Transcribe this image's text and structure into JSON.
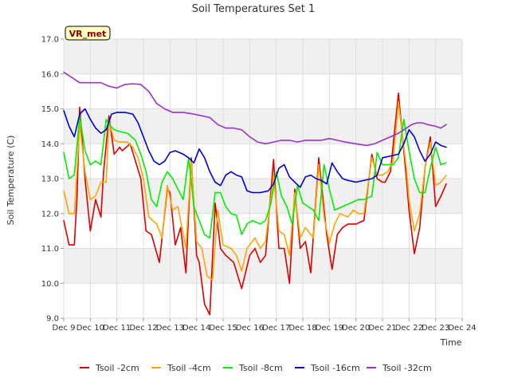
{
  "chart_data": {
    "type": "line",
    "title": "Soil Temperatures Set 1",
    "xlabel": "Time",
    "ylabel": "Soil Temperature (C)",
    "badge": "VR_met",
    "ylim": [
      9.0,
      17.0
    ],
    "yticks": [
      "9.0",
      "10.0",
      "11.0",
      "12.0",
      "13.0",
      "14.0",
      "15.0",
      "16.0",
      "17.0"
    ],
    "xlim": [
      9,
      24
    ],
    "xticks": [
      "Dec 9",
      "Dec 10",
      "Dec 11",
      "Dec 12",
      "Dec 13",
      "Dec 14",
      "Dec 15",
      "Dec 16",
      "Dec 17",
      "Dec 18",
      "Dec 19",
      "Dec 20",
      "Dec 21",
      "Dec 22",
      "Dec 23",
      "Dec 24"
    ],
    "grid": true,
    "legend_position": "bottom",
    "series": [
      {
        "name": "Tsoil -2cm",
        "color": "#dd0000",
        "x": [
          9.0,
          9.2,
          9.4,
          9.5,
          9.6,
          9.8,
          10.0,
          10.2,
          10.4,
          10.5,
          10.7,
          10.9,
          11.0,
          11.1,
          11.2,
          11.5,
          11.7,
          11.9,
          12.1,
          12.3,
          12.6,
          12.9,
          13.0,
          13.2,
          13.4,
          13.6,
          13.8,
          14.0,
          14.1,
          14.3,
          14.5,
          14.7,
          14.9,
          15.1,
          15.4,
          15.7,
          16.0,
          16.2,
          16.4,
          16.6,
          16.9,
          17.1,
          17.3,
          17.5,
          17.7,
          17.9,
          18.1,
          18.3,
          18.6,
          18.9,
          19.1,
          19.3,
          19.5,
          19.7,
          20.0,
          20.3,
          20.6,
          20.8,
          21.0,
          21.1,
          21.3,
          21.6,
          21.9,
          22.0,
          22.2,
          22.4,
          22.6,
          22.8,
          23.0,
          23.2,
          23.4
        ],
        "y": [
          11.8,
          11.1,
          11.1,
          12.5,
          15.05,
          13.0,
          11.5,
          12.4,
          11.9,
          13.2,
          14.8,
          13.7,
          13.8,
          13.9,
          13.8,
          14.0,
          13.5,
          13.0,
          11.5,
          11.4,
          10.6,
          12.7,
          12.6,
          11.1,
          11.6,
          10.3,
          13.6,
          10.8,
          10.6,
          9.4,
          9.1,
          12.3,
          11.0,
          10.8,
          10.6,
          9.85,
          10.8,
          11.0,
          10.6,
          10.8,
          13.55,
          11.0,
          11.0,
          10.0,
          12.7,
          11.0,
          11.2,
          10.3,
          13.6,
          11.4,
          10.4,
          11.4,
          11.6,
          11.7,
          11.7,
          11.8,
          13.7,
          13.0,
          12.9,
          12.9,
          13.2,
          15.45,
          13.0,
          12.1,
          10.85,
          11.6,
          13.3,
          14.2,
          12.2,
          12.5,
          12.85
        ]
      },
      {
        "name": "Tsoil -4cm",
        "color": "#ffa500",
        "x": [
          9.0,
          9.2,
          9.4,
          9.6,
          9.8,
          10.0,
          10.2,
          10.4,
          10.6,
          10.7,
          10.9,
          11.1,
          11.4,
          11.6,
          11.8,
          12.0,
          12.2,
          12.5,
          12.7,
          12.9,
          13.1,
          13.3,
          13.6,
          13.8,
          14.0,
          14.2,
          14.4,
          14.6,
          14.8,
          15.0,
          15.3,
          15.5,
          15.7,
          15.9,
          16.2,
          16.4,
          16.6,
          16.9,
          17.1,
          17.3,
          17.5,
          17.7,
          17.9,
          18.1,
          18.4,
          18.6,
          18.8,
          19.0,
          19.2,
          19.4,
          19.7,
          19.9,
          20.1,
          20.3,
          20.6,
          20.8,
          21.0,
          21.2,
          21.4,
          21.6,
          21.9,
          22.0,
          22.2,
          22.4,
          22.6,
          22.8,
          23.0,
          23.2,
          23.4
        ],
        "y": [
          12.65,
          12.0,
          12.0,
          14.55,
          13.2,
          12.4,
          12.5,
          12.9,
          12.9,
          14.65,
          14.1,
          14.05,
          14.05,
          13.9,
          13.6,
          13.0,
          11.9,
          11.7,
          11.3,
          12.8,
          12.1,
          12.2,
          11.0,
          13.5,
          11.2,
          11.0,
          10.2,
          10.1,
          12.1,
          11.1,
          11.0,
          10.8,
          10.35,
          11.0,
          11.3,
          11.0,
          11.2,
          13.1,
          11.5,
          11.4,
          10.8,
          12.6,
          11.3,
          11.6,
          11.3,
          13.4,
          11.9,
          11.15,
          11.7,
          12.0,
          11.9,
          12.1,
          12.0,
          12.0,
          13.6,
          13.1,
          13.1,
          13.2,
          13.5,
          15.2,
          13.3,
          12.4,
          11.5,
          12.0,
          13.3,
          14.05,
          12.8,
          12.9,
          13.1
        ]
      },
      {
        "name": "Tsoil -8cm",
        "color": "#00ee00",
        "x": [
          9.0,
          9.2,
          9.4,
          9.6,
          9.8,
          10.0,
          10.2,
          10.4,
          10.6,
          10.7,
          10.9,
          11.1,
          11.4,
          11.7,
          11.9,
          12.1,
          12.3,
          12.5,
          12.7,
          12.9,
          13.1,
          13.3,
          13.5,
          13.7,
          13.9,
          14.1,
          14.3,
          14.5,
          14.7,
          14.9,
          15.1,
          15.3,
          15.5,
          15.7,
          15.9,
          16.1,
          16.4,
          16.6,
          16.8,
          17.0,
          17.2,
          17.4,
          17.6,
          17.8,
          18.0,
          18.2,
          18.4,
          18.6,
          18.8,
          19.0,
          19.2,
          19.5,
          19.8,
          20.1,
          20.3,
          20.6,
          20.8,
          21.0,
          21.2,
          21.4,
          21.6,
          21.8,
          22.0,
          22.2,
          22.4,
          22.6,
          22.8,
          23.0,
          23.2,
          23.4
        ],
        "y": [
          13.75,
          13.0,
          13.1,
          14.8,
          13.8,
          13.4,
          13.5,
          13.4,
          14.7,
          14.55,
          14.4,
          14.35,
          14.3,
          14.1,
          13.7,
          13.2,
          12.4,
          12.2,
          12.9,
          13.2,
          13.0,
          12.7,
          12.4,
          13.6,
          12.2,
          11.8,
          11.4,
          11.3,
          12.6,
          12.6,
          12.2,
          12.0,
          11.95,
          11.4,
          11.7,
          11.8,
          11.7,
          11.8,
          12.3,
          13.2,
          12.5,
          12.2,
          11.7,
          12.8,
          12.3,
          12.2,
          12.1,
          11.8,
          13.4,
          12.7,
          12.1,
          12.2,
          12.3,
          12.4,
          12.4,
          12.5,
          13.75,
          13.4,
          13.4,
          13.4,
          13.6,
          14.7,
          13.8,
          13.0,
          12.6,
          12.6,
          13.3,
          13.9,
          13.4,
          13.45
        ]
      },
      {
        "name": "Tsoil -16cm",
        "color": "#0000cc",
        "x": [
          9.0,
          9.2,
          9.4,
          9.6,
          9.8,
          10.0,
          10.2,
          10.4,
          10.6,
          10.8,
          11.0,
          11.3,
          11.6,
          11.8,
          12.0,
          12.2,
          12.4,
          12.6,
          12.8,
          13.0,
          13.2,
          13.5,
          13.7,
          13.9,
          14.1,
          14.3,
          14.5,
          14.7,
          14.9,
          15.1,
          15.3,
          15.5,
          15.7,
          15.9,
          16.1,
          16.4,
          16.7,
          16.9,
          17.1,
          17.3,
          17.5,
          17.7,
          17.9,
          18.1,
          18.3,
          18.5,
          18.7,
          18.9,
          19.1,
          19.3,
          19.5,
          19.7,
          20.0,
          20.3,
          20.6,
          20.8,
          21.0,
          21.3,
          21.6,
          21.8,
          22.0,
          22.2,
          22.4,
          22.6,
          22.8,
          23.0,
          23.2,
          23.4
        ],
        "y": [
          14.95,
          14.5,
          14.2,
          14.85,
          15.0,
          14.7,
          14.45,
          14.3,
          14.4,
          14.85,
          14.9,
          14.9,
          14.85,
          14.6,
          14.2,
          13.8,
          13.5,
          13.4,
          13.5,
          13.75,
          13.8,
          13.7,
          13.6,
          13.45,
          13.85,
          13.6,
          13.2,
          12.9,
          12.8,
          13.1,
          13.2,
          13.1,
          13.05,
          12.65,
          12.6,
          12.6,
          12.65,
          12.85,
          13.3,
          13.4,
          13.05,
          12.9,
          12.75,
          13.05,
          13.1,
          13.0,
          12.95,
          12.85,
          13.45,
          13.2,
          13.0,
          12.95,
          12.9,
          12.95,
          13.0,
          13.1,
          13.6,
          13.65,
          13.7,
          14.0,
          14.4,
          14.2,
          13.8,
          13.5,
          13.7,
          14.05,
          13.95,
          13.9
        ]
      },
      {
        "name": "Tsoil -32cm",
        "color": "#9933cc",
        "x": [
          9.0,
          9.3,
          9.6,
          10.0,
          10.4,
          10.7,
          11.0,
          11.3,
          11.6,
          11.9,
          12.2,
          12.5,
          12.8,
          13.1,
          13.5,
          13.9,
          14.2,
          14.5,
          14.8,
          15.1,
          15.4,
          15.7,
          16.0,
          16.3,
          16.6,
          16.9,
          17.2,
          17.5,
          17.8,
          18.1,
          18.4,
          18.7,
          19.0,
          19.3,
          19.6,
          20.0,
          20.4,
          20.7,
          21.0,
          21.3,
          21.6,
          21.9,
          22.1,
          22.3,
          22.5,
          22.7,
          23.0,
          23.2,
          23.4
        ],
        "y": [
          16.05,
          15.9,
          15.75,
          15.75,
          15.75,
          15.65,
          15.6,
          15.7,
          15.72,
          15.7,
          15.5,
          15.15,
          15.0,
          14.9,
          14.9,
          14.85,
          14.8,
          14.75,
          14.55,
          14.45,
          14.45,
          14.4,
          14.2,
          14.05,
          14.0,
          14.05,
          14.1,
          14.1,
          14.05,
          14.1,
          14.1,
          14.1,
          14.15,
          14.1,
          14.05,
          14.0,
          13.95,
          14.0,
          14.1,
          14.2,
          14.3,
          14.45,
          14.55,
          14.6,
          14.6,
          14.55,
          14.5,
          14.45,
          14.55
        ]
      }
    ]
  }
}
